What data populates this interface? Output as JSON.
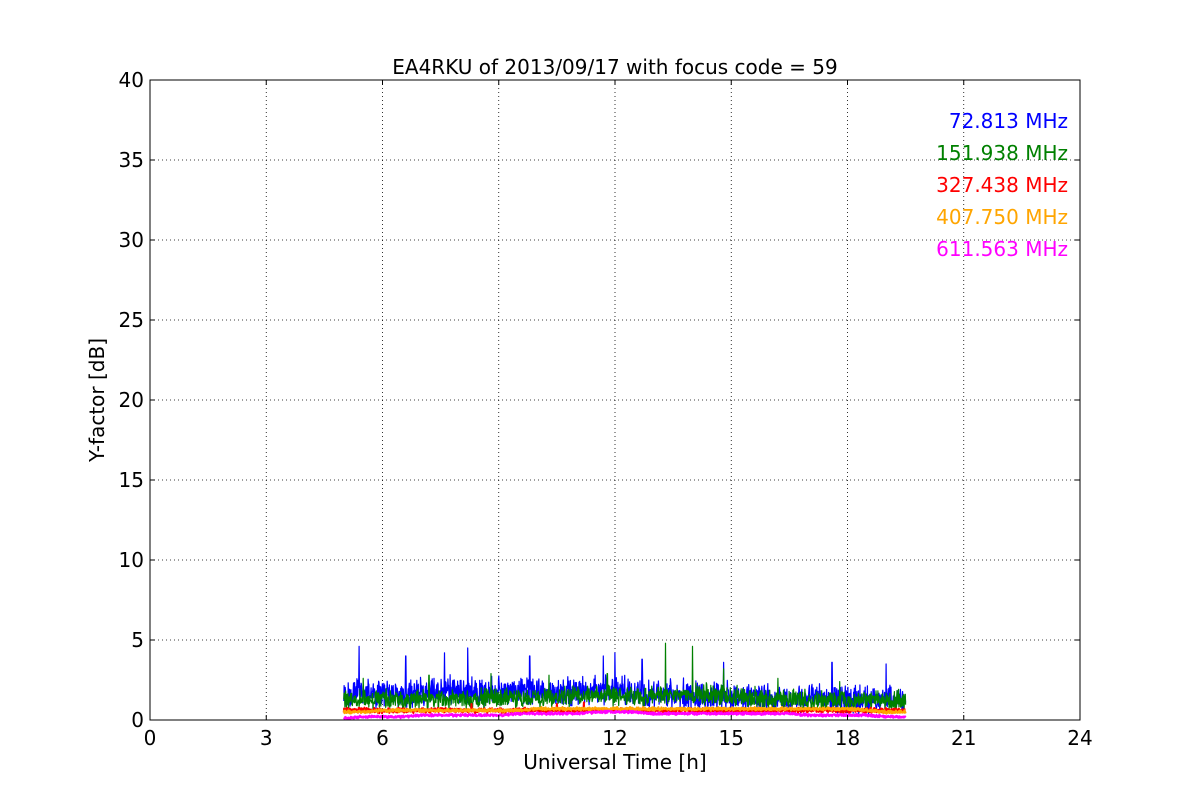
{
  "chart_data": {
    "type": "line",
    "title": "EA4RKU of 2013/09/17 with focus code = 59",
    "xlabel": "Universal Time [h]",
    "ylabel": "Y-factor [dB]",
    "xlim": [
      0,
      24
    ],
    "ylim": [
      0,
      40
    ],
    "x_ticks": [
      "0",
      "3",
      "6",
      "9",
      "12",
      "15",
      "18",
      "21",
      "24"
    ],
    "y_ticks": [
      "0",
      "5",
      "10",
      "15",
      "20",
      "25",
      "30",
      "35",
      "40"
    ],
    "grid": true,
    "legend_placement": "top-right",
    "x_range_data": [
      5.0,
      19.5
    ],
    "series": [
      {
        "name": "72.813 MHz",
        "color": "#0000ff",
        "x": [
          5.0,
          5.5,
          6.0,
          6.5,
          7.0,
          7.5,
          8.0,
          8.5,
          9.0,
          9.5,
          10.0,
          10.5,
          11.0,
          11.5,
          12.0,
          12.5,
          13.0,
          13.5,
          14.0,
          14.5,
          15.0,
          15.5,
          16.0,
          16.5,
          17.0,
          17.5,
          18.0,
          18.5,
          19.0,
          19.5
        ],
        "values": [
          1.5,
          1.8,
          1.7,
          1.6,
          1.8,
          1.9,
          1.8,
          1.7,
          1.8,
          1.9,
          1.8,
          1.7,
          1.8,
          1.9,
          1.8,
          1.7,
          1.6,
          1.6,
          1.5,
          1.5,
          1.5,
          1.4,
          1.4,
          1.3,
          1.3,
          1.3,
          1.3,
          1.3,
          1.4,
          1.3
        ],
        "peaks": [
          [
            5.4,
            4.6
          ],
          [
            6.6,
            4.0
          ],
          [
            7.6,
            4.2
          ],
          [
            8.2,
            4.5
          ],
          [
            9.8,
            4.0
          ],
          [
            11.7,
            4.0
          ],
          [
            12.0,
            4.2
          ],
          [
            12.7,
            3.8
          ],
          [
            14.8,
            3.6
          ],
          [
            17.6,
            3.6
          ],
          [
            19.0,
            3.5
          ]
        ]
      },
      {
        "name": "151.938 MHz",
        "color": "#008000",
        "x": [
          5.0,
          5.5,
          6.0,
          6.5,
          7.0,
          7.5,
          8.0,
          8.5,
          9.0,
          9.5,
          10.0,
          10.5,
          11.0,
          11.5,
          12.0,
          12.5,
          13.0,
          13.5,
          14.0,
          14.5,
          15.0,
          15.5,
          16.0,
          16.5,
          17.0,
          17.5,
          18.0,
          18.5,
          19.0,
          19.5
        ],
        "values": [
          1.2,
          1.3,
          1.3,
          1.2,
          1.3,
          1.3,
          1.3,
          1.3,
          1.4,
          1.3,
          1.4,
          1.4,
          1.5,
          1.5,
          1.5,
          1.5,
          1.6,
          1.6,
          1.6,
          1.6,
          1.5,
          1.4,
          1.3,
          1.3,
          1.2,
          1.2,
          1.2,
          1.2,
          1.2,
          1.2
        ],
        "peaks": [
          [
            5.5,
            2.6
          ],
          [
            7.2,
            2.8
          ],
          [
            8.8,
            2.9
          ],
          [
            10.3,
            2.8
          ],
          [
            11.8,
            2.9
          ],
          [
            13.3,
            4.8
          ],
          [
            14.0,
            4.6
          ],
          [
            14.8,
            3.2
          ],
          [
            16.2,
            2.6
          ],
          [
            17.8,
            2.4
          ]
        ]
      },
      {
        "name": "327.438 MHz",
        "color": "#ff0000",
        "x": [
          5.0,
          5.5,
          6.0,
          6.5,
          7.0,
          7.5,
          8.0,
          8.5,
          9.0,
          9.5,
          10.0,
          10.5,
          11.0,
          11.5,
          12.0,
          12.5,
          13.0,
          13.5,
          14.0,
          14.5,
          15.0,
          15.5,
          16.0,
          16.5,
          17.0,
          17.5,
          18.0,
          18.5,
          19.0,
          19.5
        ],
        "values": [
          0.6,
          0.6,
          0.6,
          0.6,
          0.6,
          0.6,
          0.6,
          0.6,
          0.6,
          0.6,
          0.6,
          0.6,
          0.6,
          0.6,
          0.6,
          0.6,
          0.6,
          0.6,
          0.6,
          0.6,
          0.6,
          0.6,
          0.6,
          0.6,
          0.6,
          0.6,
          0.6,
          0.6,
          0.6,
          0.6
        ],
        "peaks": [
          [
            8.3,
            1.0
          ],
          [
            10.5,
            1.0
          ],
          [
            11.2,
            1.1
          ]
        ]
      },
      {
        "name": "407.750 MHz",
        "color": "#ffa500",
        "x": [
          5.0,
          5.5,
          6.0,
          6.5,
          7.0,
          7.5,
          8.0,
          8.5,
          9.0,
          9.5,
          10.0,
          10.5,
          11.0,
          11.5,
          12.0,
          12.5,
          13.0,
          13.5,
          14.0,
          14.5,
          15.0,
          15.5,
          16.0,
          16.5,
          17.0,
          17.5,
          18.0,
          18.5,
          19.0,
          19.5
        ],
        "values": [
          0.5,
          0.5,
          0.6,
          0.6,
          0.6,
          0.6,
          0.6,
          0.6,
          0.6,
          0.6,
          0.7,
          0.7,
          0.7,
          0.7,
          0.7,
          0.7,
          0.7,
          0.7,
          0.7,
          0.7,
          0.7,
          0.7,
          0.7,
          0.7,
          0.7,
          0.7,
          0.7,
          0.6,
          0.5,
          0.5
        ],
        "peaks": []
      },
      {
        "name": "611.563 MHz",
        "color": "#ff00ff",
        "x": [
          5.0,
          5.5,
          6.0,
          6.5,
          7.0,
          7.5,
          8.0,
          8.5,
          9.0,
          9.5,
          10.0,
          10.5,
          11.0,
          11.5,
          12.0,
          12.5,
          13.0,
          13.5,
          14.0,
          14.5,
          15.0,
          15.5,
          16.0,
          16.5,
          17.0,
          17.5,
          18.0,
          18.5,
          19.0,
          19.5
        ],
        "values": [
          0.1,
          0.2,
          0.2,
          0.2,
          0.3,
          0.3,
          0.3,
          0.3,
          0.3,
          0.4,
          0.4,
          0.4,
          0.4,
          0.5,
          0.5,
          0.5,
          0.4,
          0.4,
          0.4,
          0.4,
          0.4,
          0.4,
          0.4,
          0.4,
          0.3,
          0.3,
          0.3,
          0.3,
          0.2,
          0.2
        ],
        "peaks": []
      }
    ]
  }
}
